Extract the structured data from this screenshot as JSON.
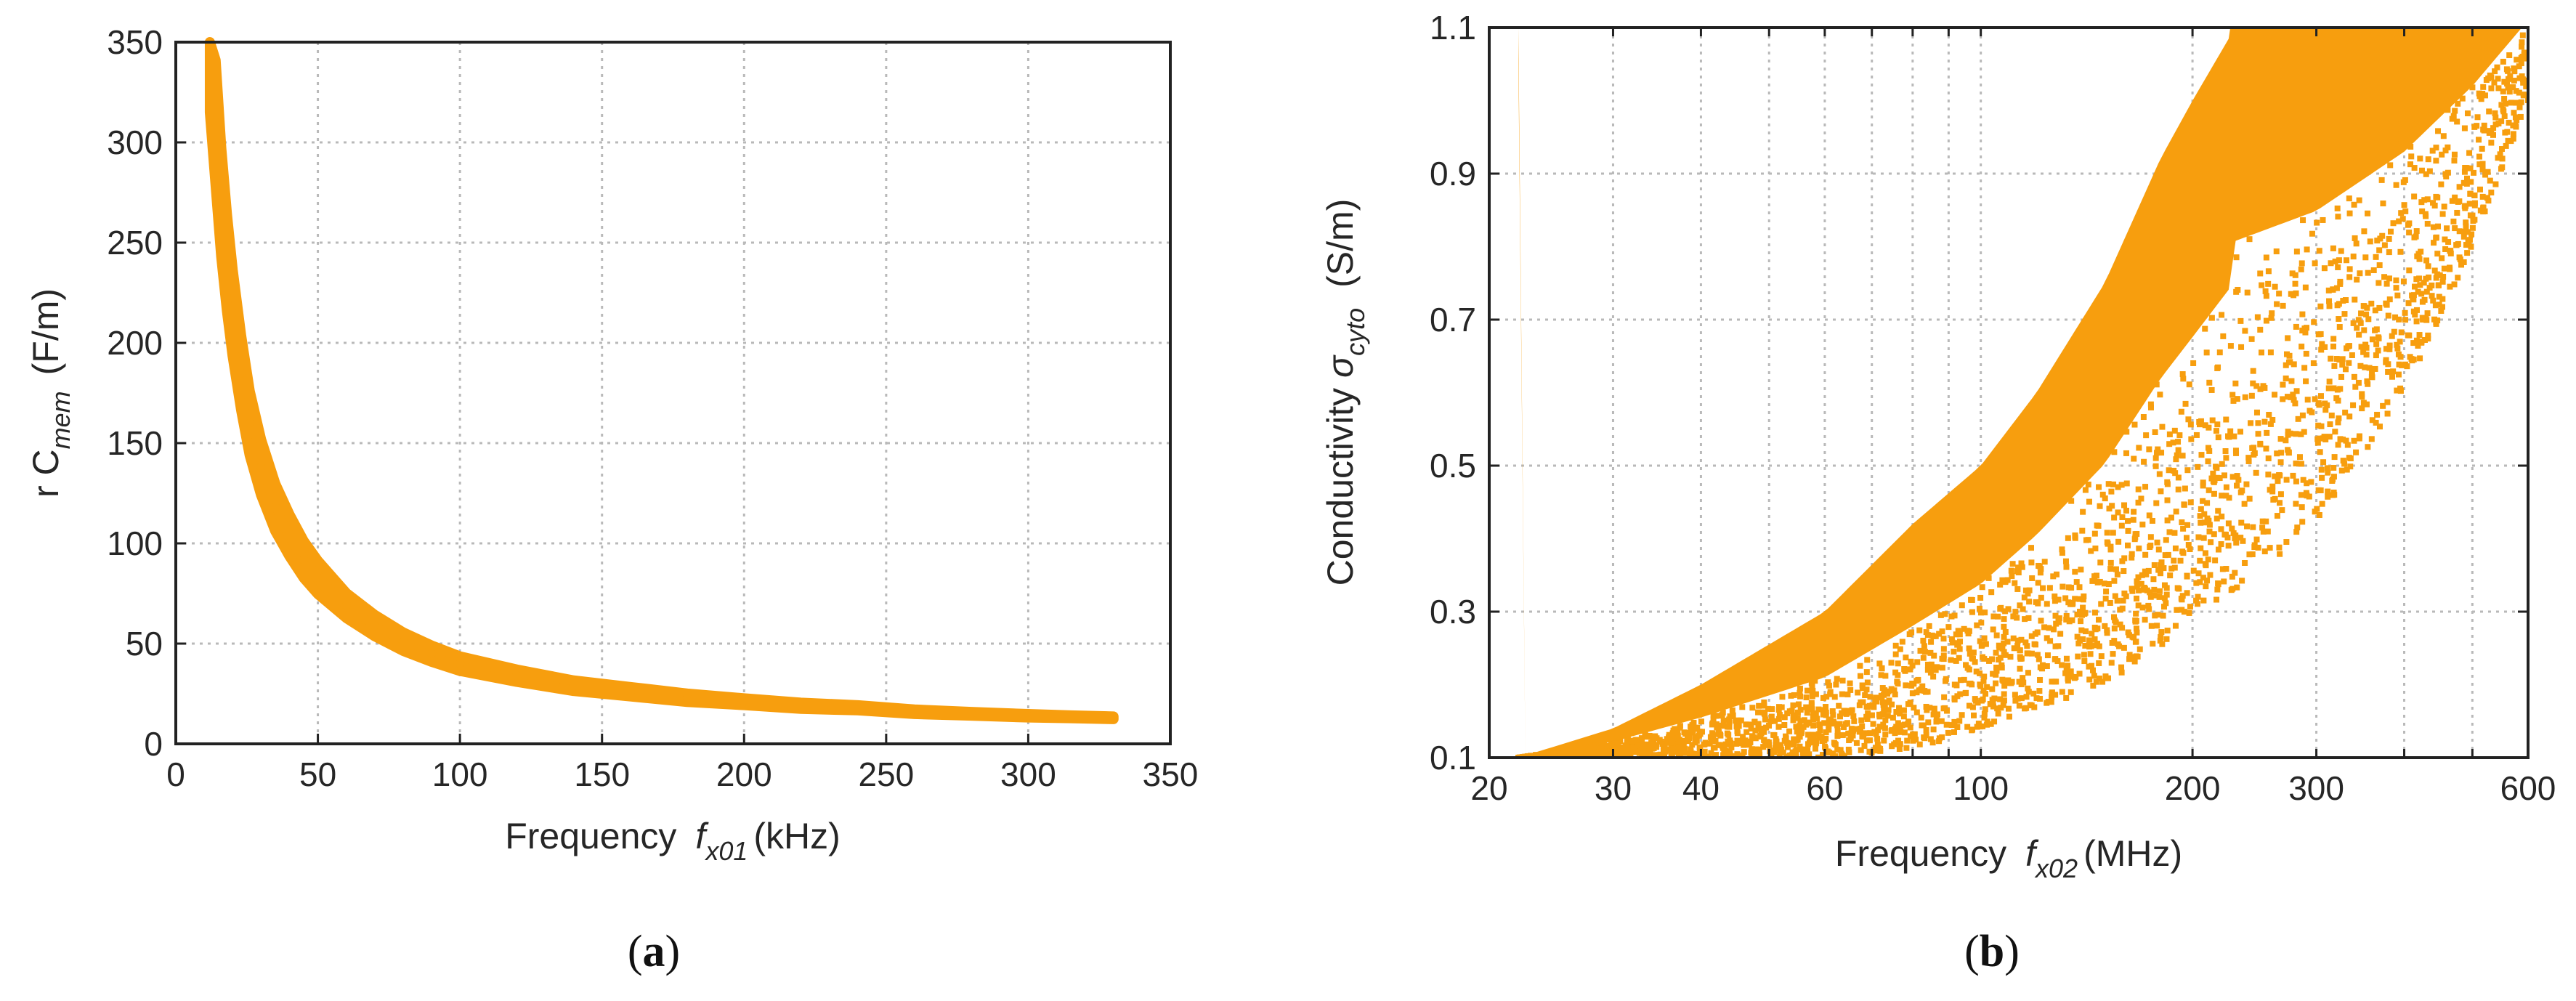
{
  "colors": {
    "series": "#F79E0E",
    "axis": "#222222",
    "grid": "#B9B9B9",
    "text": "#262626"
  },
  "chart_data": [
    {
      "type": "scatter",
      "panel_label": {
        "open": "(",
        "letter": "a",
        "close": ")"
      },
      "xlabel": {
        "prefix": "Frequency",
        "symbol": "f",
        "subscript": "x01",
        "unit": "(kHz)"
      },
      "ylabel": {
        "prefix": "r C",
        "subscript": "mem",
        "unit": "(F/m)"
      },
      "xlim": [
        0,
        350
      ],
      "ylim": [
        0,
        350
      ],
      "xticks": [
        0,
        50,
        100,
        150,
        200,
        250,
        300,
        350
      ],
      "yticks": [
        0,
        50,
        100,
        150,
        200,
        250,
        300,
        350
      ],
      "grid": true,
      "series": [
        {
          "points": [
            [
              12,
              350
            ],
            [
              14,
              310
            ],
            [
              16,
              270
            ],
            [
              18,
              240
            ],
            [
              20,
              215
            ],
            [
              23,
              185
            ],
            [
              26,
              160
            ],
            [
              30,
              138
            ],
            [
              35,
              118
            ],
            [
              40,
              104
            ],
            [
              45,
              92
            ],
            [
              50,
              83
            ],
            [
              60,
              69
            ],
            [
              70,
              59
            ],
            [
              80,
              51
            ],
            [
              90,
              45
            ],
            [
              100,
              40
            ],
            [
              120,
              34
            ],
            [
              140,
              29
            ],
            [
              160,
              26
            ],
            [
              180,
              23
            ],
            [
              200,
              21
            ],
            [
              220,
              19
            ],
            [
              240,
              18
            ],
            [
              260,
              16
            ],
            [
              280,
              15
            ],
            [
              300,
              14
            ],
            [
              315,
              13.5
            ],
            [
              330,
              13
            ]
          ],
          "band_width": [
            0.1,
            0.1,
            0.1,
            0.1,
            0.1,
            0.1,
            0.1,
            0.1,
            0.1,
            0.1,
            0.1,
            0.1,
            0.09,
            0.09,
            0.09,
            0.09,
            0.09,
            0.09,
            0.09,
            0.09,
            0.09,
            0.08,
            0.08,
            0.07,
            0.07,
            0.06,
            0.06,
            0.05,
            0.05
          ]
        }
      ]
    },
    {
      "type": "scatter",
      "panel_label": {
        "open": "(",
        "letter": "b",
        "close": ")"
      },
      "xlabel": {
        "prefix": "Frequency",
        "symbol": "f",
        "subscript": "x02",
        "unit": "(MHz)"
      },
      "ylabel": {
        "prefix": "Conductivity",
        "symbol": "σ",
        "subscript": "cyto",
        "unit": "(S/m)"
      },
      "xscale": "log",
      "xlim": [
        20,
        600
      ],
      "ylim": [
        0.1,
        1.1
      ],
      "xticks": [
        20,
        30,
        40,
        60,
        100,
        200,
        300,
        600
      ],
      "yticks": [
        0.1,
        0.3,
        0.5,
        0.7,
        0.9,
        1.1
      ],
      "grid": true,
      "series": [
        {
          "upper_edge": [
            [
              22,
              0.1
            ],
            [
              30,
              0.14
            ],
            [
              40,
              0.2
            ],
            [
              60,
              0.3
            ],
            [
              80,
              0.42
            ],
            [
              100,
              0.5
            ],
            [
              120,
              0.6
            ],
            [
              150,
              0.75
            ],
            [
              180,
              0.92
            ],
            [
              200,
              1.0
            ],
            [
              230,
              1.1
            ]
          ],
          "lower_edge": [
            [
              22,
              0.1
            ],
            [
              60,
              0.1
            ],
            [
              80,
              0.11
            ],
            [
              100,
              0.14
            ],
            [
              150,
              0.2
            ],
            [
              200,
              0.28
            ],
            [
              300,
              0.42
            ],
            [
              400,
              0.6
            ],
            [
              500,
              0.8
            ],
            [
              600,
              1.0
            ]
          ]
        }
      ]
    }
  ]
}
